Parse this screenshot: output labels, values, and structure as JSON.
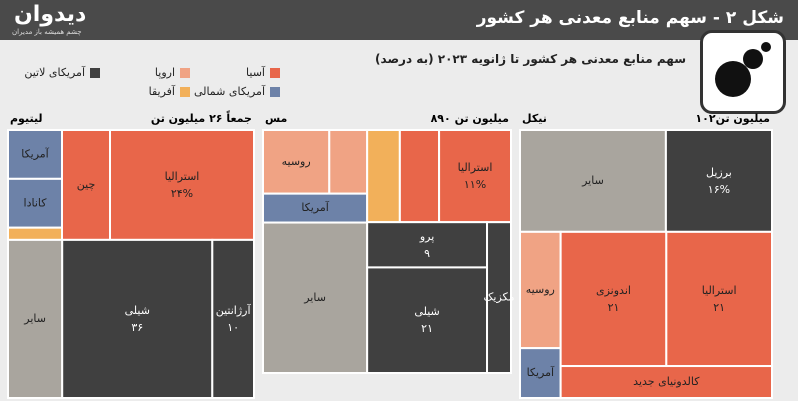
{
  "header": {
    "title": "شکل ۲ - سهم منابع معدنی هر کشور",
    "brand": "دیدوان",
    "tagline": "چشم همیشه باز مدیران"
  },
  "subtitle": "سهم منابع معدنی هر کشور تا ژانویه ۲۰۲۳ (به درصد)",
  "legend": [
    {
      "name": "آسیا",
      "color": "#e8664a"
    },
    {
      "name": "اروپا",
      "color": "#f0a384"
    },
    {
      "name": "آمریکای لاتین",
      "color": "#404040"
    },
    {
      "name": "آمریکای شمالی",
      "color": "#6d82a8"
    },
    {
      "name": "آفریقا",
      "color": "#f2b05a"
    }
  ],
  "chart_data": [
    {
      "type": "treemap",
      "title": "لیتیوم",
      "subtitle": "جمعاً ۲۶ میلیون تن",
      "categories": [
        "آمریکا",
        "کانادا",
        null,
        "چین",
        "استرالیا",
        "سایر",
        "شیلی",
        "آرژانتین"
      ],
      "values": [
        4,
        4,
        1,
        8,
        24,
        13,
        36,
        10
      ],
      "value_labels": [
        null,
        null,
        null,
        null,
        "۲۴%",
        null,
        "۳۶",
        "۱۰"
      ],
      "colors": [
        "#6d82a8",
        "#6d82a8",
        "#f2b05a",
        "#e8664a",
        "#e8664a",
        "#a9a59e",
        "#404040",
        "#404040"
      ]
    },
    {
      "type": "treemap",
      "title": "مس",
      "subtitle": "۸۹۰ میلیون تن",
      "categories": [
        "روسیه",
        null,
        null,
        "استرالیا",
        "آمریکا",
        null,
        "پرو",
        "مکزیک",
        "سایر",
        "شیلی"
      ],
      "values": [
        7,
        4,
        5,
        11,
        5,
        6,
        9,
        6,
        26,
        21
      ],
      "value_labels": [
        null,
        null,
        null,
        "۱۱%",
        null,
        null,
        "۹",
        null,
        null,
        "۲۱"
      ],
      "colors": [
        "#f0a384",
        "#f0a384",
        "#f2b05a",
        "#e8664a",
        "#6d82a8",
        "#e8664a",
        "#404040",
        "#404040",
        "#a9a59e",
        "#404040"
      ]
    },
    {
      "type": "treemap",
      "title": "نیکل",
      "subtitle": "۱۰۲میلیون تن",
      "categories": [
        "سایر",
        "برزیل",
        "روسیه",
        "اندونزی",
        "استرالیا",
        "آمریکا",
        "کالدونیای جدید"
      ],
      "values": [
        22,
        16,
        7,
        21,
        21,
        3,
        10
      ],
      "value_labels": [
        null,
        "۱۶%",
        null,
        "۲۱",
        "۲۱",
        null,
        null
      ],
      "colors": [
        "#a9a59e",
        "#404040",
        "#f0a384",
        "#e8664a",
        "#e8664a",
        "#6d82a8",
        "#e8664a"
      ]
    }
  ]
}
